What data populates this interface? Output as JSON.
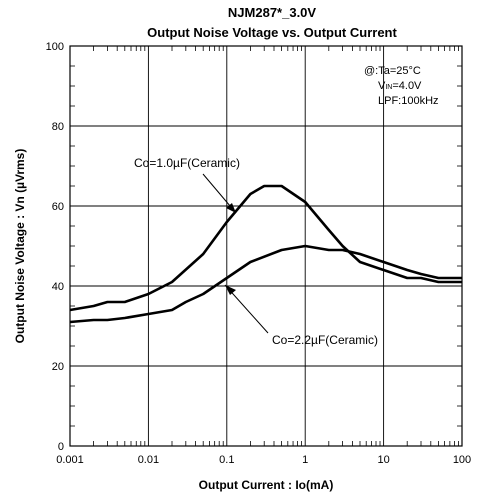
{
  "chart_data": {
    "type": "line",
    "title": "NJM287*_3.0V",
    "subtitle": "Output Noise Voltage vs. Output Current",
    "xlabel": "Output Current : Io(mA)",
    "ylabel": "Output Noise Voltage : Vn (µVrms)",
    "x_scale": "log",
    "xlim": [
      0.001,
      100
    ],
    "ylim": [
      0,
      100
    ],
    "x_ticks": [
      "0.001",
      "0.01",
      "0.1",
      "1",
      "10",
      "100"
    ],
    "y_ticks": [
      "0",
      "20",
      "40",
      "60",
      "80",
      "100"
    ],
    "grid": true,
    "conditions": {
      "line1_prefix": "@:Ta=25",
      "line1_unit": "°C",
      "line2_v": "V",
      "line2_sub": "IN",
      "line2_value": "=4.0V",
      "line3": "LPF:100kHz"
    },
    "series": [
      {
        "label_prefix": "Co",
        "label_value": "=1.0µF(Ceramic)",
        "x": [
          0.001,
          0.002,
          0.003,
          0.005,
          0.01,
          0.02,
          0.05,
          0.1,
          0.2,
          0.3,
          0.5,
          1,
          2,
          3,
          5,
          10,
          20,
          30,
          50,
          100
        ],
        "y": [
          34,
          35,
          36,
          36,
          38,
          41,
          48,
          56,
          63,
          65,
          65,
          61,
          54,
          50,
          46,
          44,
          42,
          42,
          41,
          41
        ]
      },
      {
        "label_prefix": "Co",
        "label_value": "=2.2µF(Ceramic)",
        "x": [
          0.001,
          0.002,
          0.003,
          0.005,
          0.01,
          0.02,
          0.03,
          0.05,
          0.1,
          0.2,
          0.5,
          1,
          2,
          3,
          5,
          10,
          20,
          30,
          50,
          100
        ],
        "y": [
          31,
          31.5,
          31.5,
          32,
          33,
          34,
          36,
          38,
          42,
          46,
          49,
          50,
          49,
          49,
          48,
          46,
          44,
          43,
          42,
          42
        ]
      }
    ]
  }
}
